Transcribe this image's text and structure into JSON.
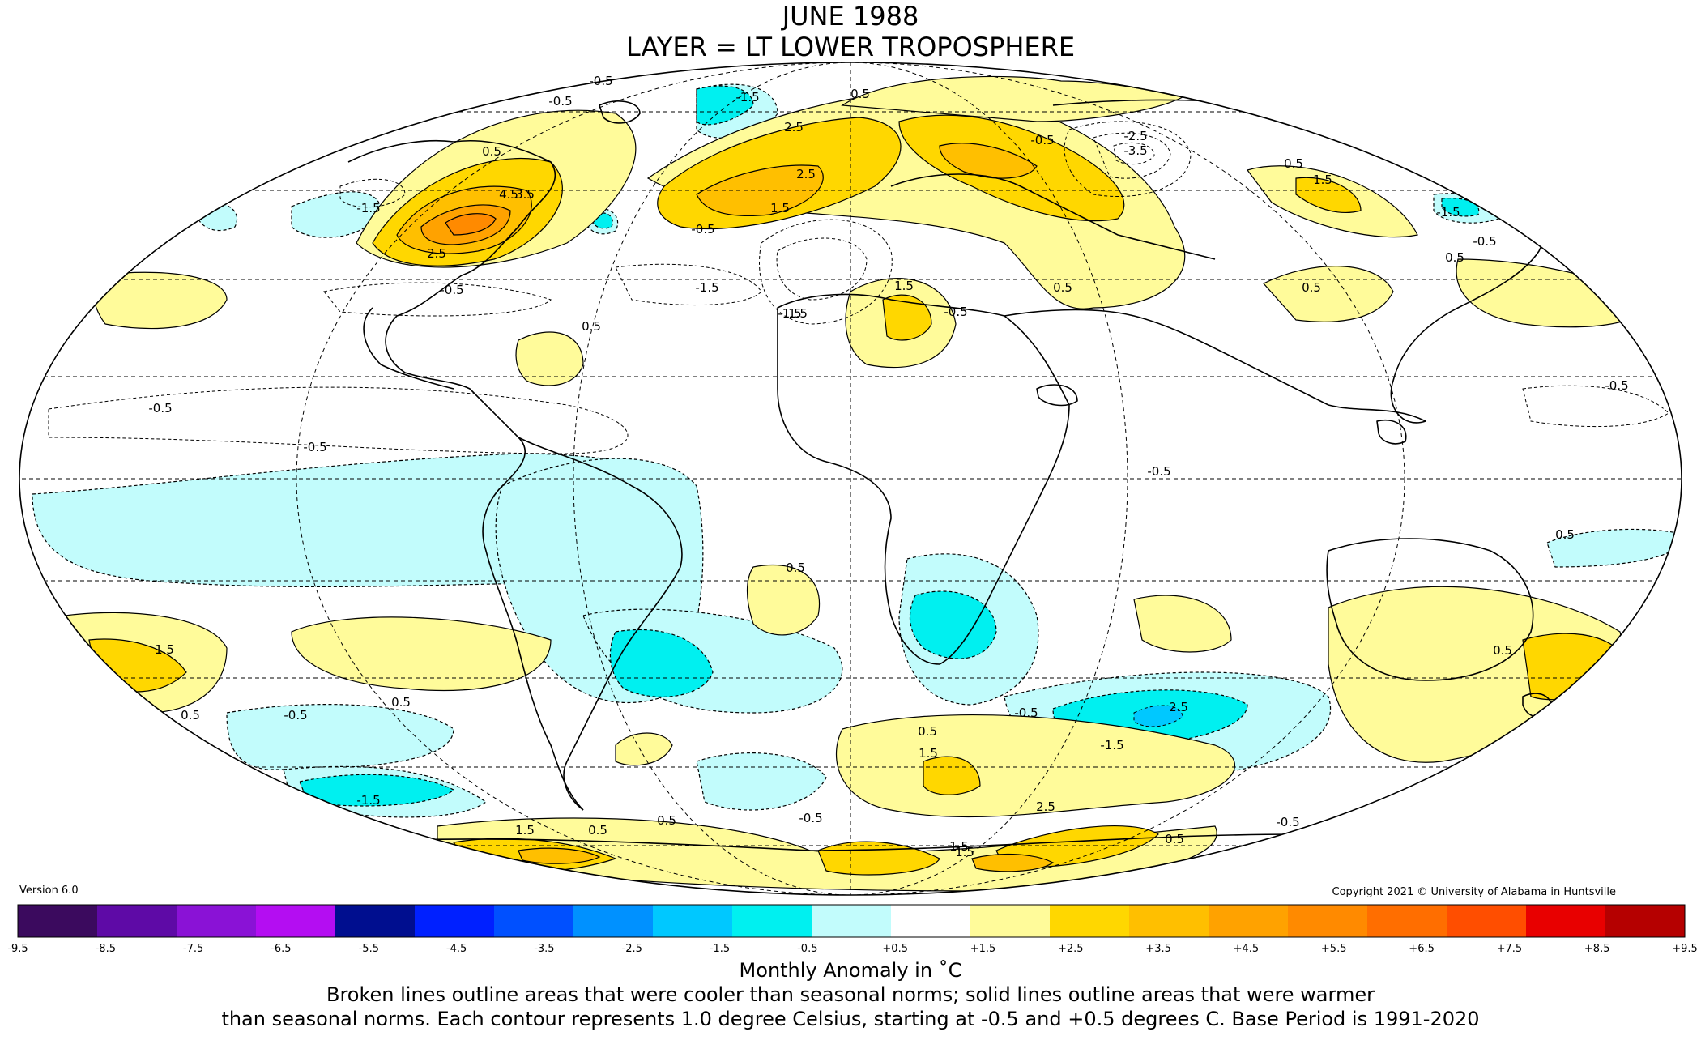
{
  "title_line1": "JUNE 1988",
  "title_line2": "LAYER = LT LOWER TROPOSPHERE",
  "version": "Version 6.0",
  "copyright": "Copyright 2021 © University of Alabama in Huntsville",
  "units_label": "Monthly Anomaly in ˚C",
  "note_line1": "Broken lines outline areas that were cooler than seasonal norms; solid lines outline areas that were warmer",
  "note_line2": "than seasonal norms. Each contour represents 1.0 degree Celsius, starting at -0.5 and +0.5 degrees C. Base Period is 1991-2020",
  "colorbar": {
    "ticks": [
      "-9.5",
      "-8.5",
      "-7.5",
      "-6.5",
      "-5.5",
      "-4.5",
      "-3.5",
      "-2.5",
      "-1.5",
      "-0.5",
      "+0.5",
      "+1.5",
      "+2.5",
      "+3.5",
      "+4.5",
      "+5.5",
      "+6.5",
      "+7.5",
      "+8.5",
      "+9.5"
    ],
    "colors": [
      "#3b0a5e",
      "#5e0aa6",
      "#8a12d6",
      "#b40df2",
      "#000e8f",
      "#0020ff",
      "#0050ff",
      "#0091ff",
      "#00c8ff",
      "#00f0f0",
      "#c2fcfc",
      "#ffffff",
      "#fffb9a",
      "#ffd700",
      "#ffbf00",
      "#ffa200",
      "#ff8a00",
      "#ff6e00",
      "#ff4e00",
      "#e80000",
      "#b50000"
    ]
  },
  "contour_labels": [
    "-0.5",
    "-0.5",
    "-1.5",
    "0.5",
    "4.5",
    "3.5",
    "2.5",
    "-1.5",
    "-0.5",
    "2.5",
    "1.5",
    "0.5",
    "-0.5",
    "2.5",
    "1.5",
    "-1.5",
    "-0.5",
    "-2.5",
    "-3.5",
    "0.5",
    "1.5",
    "-1.5",
    "-0.5",
    "0.5",
    "0.5",
    "1.5",
    "0.5",
    "-0.5",
    "-1.5",
    "0.5",
    "-0.5",
    "-0.5",
    "-0.5",
    "-0.5",
    "0.5",
    "1.5",
    "0.5",
    "0.5",
    "-0.5",
    "0.5",
    "0.5",
    "-0.5",
    "2.5",
    "-1.5",
    "1.5",
    "-1.5",
    "1.5",
    "0.5",
    "0.5",
    "-0.5",
    "1.5",
    "2.5",
    "1.5",
    "0.5",
    "0.5",
    "-0.5"
  ]
}
